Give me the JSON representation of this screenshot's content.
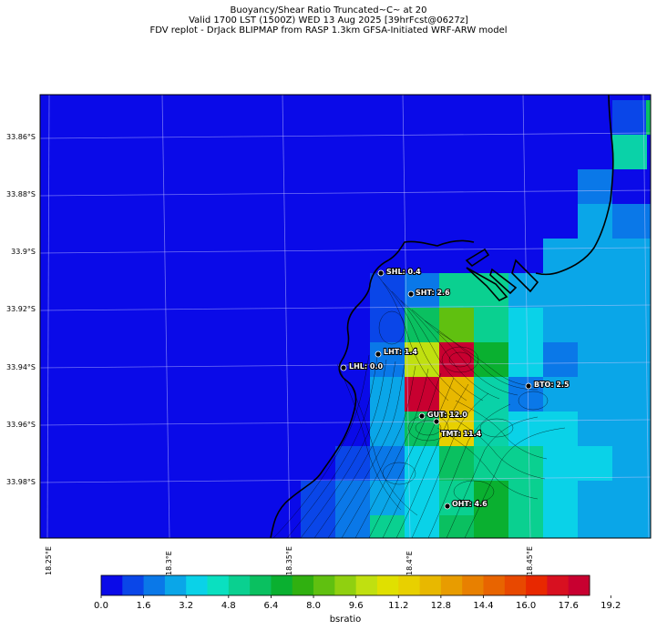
{
  "title": {
    "line1": "Buoyancy/Shear Ratio Truncated~C~    at 20",
    "line2": "Valid 1700 LST (1500Z) WED 13 Aug 2025 [39hrFcst@0627z]",
    "line3": "FDV replot - DrJack BLIPMAP from RASP 1.3km GFSA-Initiated WRF-ARW model"
  },
  "map": {
    "lat_labels": [
      "33.86°S",
      "33.88°S",
      "33.9°S",
      "33.92°S",
      "33.94°S",
      "33.96°S",
      "33.98°S"
    ],
    "lon_labels": [
      "18.25°E",
      "18.3°E",
      "18.35°E",
      "18.4°E",
      "18.45°E"
    ],
    "sites": [
      {
        "name": "SHL: 0.4"
      },
      {
        "name": "SHT: 2.6"
      },
      {
        "name": "LHT: 1.4"
      },
      {
        "name": "LHL: 0.0"
      },
      {
        "name": "BTO: 2.5"
      },
      {
        "name": "GUT: 12.0"
      },
      {
        "name": "TMT: 11.4"
      },
      {
        "name": "OHT: 4.6"
      }
    ]
  },
  "colorbar": {
    "title": "bsratio",
    "tick_labels": [
      "0.0",
      "1.6",
      "3.2",
      "4.8",
      "6.4",
      "8.0",
      "9.6",
      "11.2",
      "12.8",
      "14.4",
      "16.0",
      "17.6",
      "19.2"
    ],
    "colors": [
      "#0a0ae8",
      "#0a46e8",
      "#0a78e8",
      "#0aa6e8",
      "#0ad2e8",
      "#0ae0c0",
      "#0ad090",
      "#0ac060",
      "#0ab030",
      "#30b010",
      "#60c010",
      "#90d010",
      "#c0e010",
      "#e0e000",
      "#e8d000",
      "#e8b800",
      "#e89c00",
      "#e88000",
      "#e86400",
      "#e84800",
      "#e82800",
      "#d81020",
      "#c80030"
    ]
  }
}
